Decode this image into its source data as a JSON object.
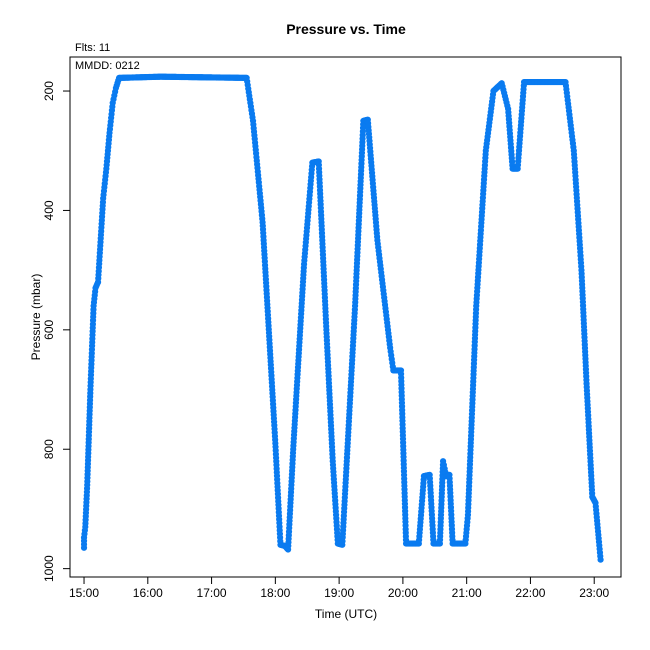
{
  "chart_data": {
    "type": "scatter",
    "title": "Pressure  vs. Time",
    "annotations": {
      "flts": "Flts: 11",
      "mmdd": "MMDD: 0212"
    },
    "xlabel": "Time (UTC)",
    "ylabel": "Pressure (mbar)",
    "xlim": [
      14.78,
      23.42
    ],
    "ylim": [
      1014,
      143
    ],
    "y_reversed": true,
    "x_ticks": [
      {
        "value": 15,
        "label": "15:00"
      },
      {
        "value": 16,
        "label": "16:00"
      },
      {
        "value": 17,
        "label": "17:00"
      },
      {
        "value": 18,
        "label": "18:00"
      },
      {
        "value": 19,
        "label": "19:00"
      },
      {
        "value": 20,
        "label": "20:00"
      },
      {
        "value": 21,
        "label": "21:00"
      },
      {
        "value": 22,
        "label": "22:00"
      },
      {
        "value": 23,
        "label": "23:00"
      }
    ],
    "y_ticks": [
      {
        "value": 200,
        "label": "200"
      },
      {
        "value": 400,
        "label": "400"
      },
      {
        "value": 600,
        "label": "600"
      },
      {
        "value": 800,
        "label": "800"
      },
      {
        "value": 1000,
        "label": "1000"
      }
    ],
    "grid": false,
    "series_color": "#0a7bf0",
    "points": [
      [
        15.0,
        965
      ],
      [
        15.0,
        948
      ],
      [
        15.02,
        930
      ],
      [
        15.05,
        860
      ],
      [
        15.1,
        700
      ],
      [
        15.15,
        560
      ],
      [
        15.18,
        530
      ],
      [
        15.22,
        520
      ],
      [
        15.3,
        380
      ],
      [
        15.35,
        330
      ],
      [
        15.4,
        270
      ],
      [
        15.45,
        220
      ],
      [
        15.5,
        195
      ],
      [
        15.55,
        178
      ],
      [
        16.2,
        176
      ],
      [
        17.55,
        178
      ],
      [
        17.65,
        250
      ],
      [
        17.8,
        420
      ],
      [
        18.0,
        790
      ],
      [
        18.08,
        960
      ],
      [
        18.15,
        962
      ],
      [
        18.2,
        968
      ],
      [
        18.28,
        800
      ],
      [
        18.45,
        490
      ],
      [
        18.58,
        320
      ],
      [
        18.68,
        318
      ],
      [
        18.8,
        600
      ],
      [
        18.9,
        820
      ],
      [
        18.98,
        958
      ],
      [
        19.05,
        960
      ],
      [
        19.12,
        820
      ],
      [
        19.25,
        560
      ],
      [
        19.38,
        250
      ],
      [
        19.45,
        248
      ],
      [
        19.6,
        450
      ],
      [
        19.8,
        630
      ],
      [
        19.85,
        668
      ],
      [
        19.97,
        668
      ],
      [
        20.05,
        958
      ],
      [
        20.25,
        958
      ],
      [
        20.33,
        845
      ],
      [
        20.42,
        843
      ],
      [
        20.48,
        958
      ],
      [
        20.58,
        958
      ],
      [
        20.63,
        820
      ],
      [
        20.68,
        845
      ],
      [
        20.73,
        843
      ],
      [
        20.78,
        958
      ],
      [
        20.98,
        958
      ],
      [
        21.02,
        910
      ],
      [
        21.15,
        560
      ],
      [
        21.3,
        300
      ],
      [
        21.42,
        200
      ],
      [
        21.55,
        187
      ],
      [
        21.65,
        230
      ],
      [
        21.72,
        330
      ],
      [
        21.8,
        330
      ],
      [
        21.9,
        185
      ],
      [
        22.55,
        185
      ],
      [
        22.68,
        300
      ],
      [
        22.8,
        500
      ],
      [
        22.88,
        690
      ],
      [
        22.97,
        880
      ],
      [
        23.02,
        890
      ],
      [
        23.1,
        985
      ]
    ]
  }
}
